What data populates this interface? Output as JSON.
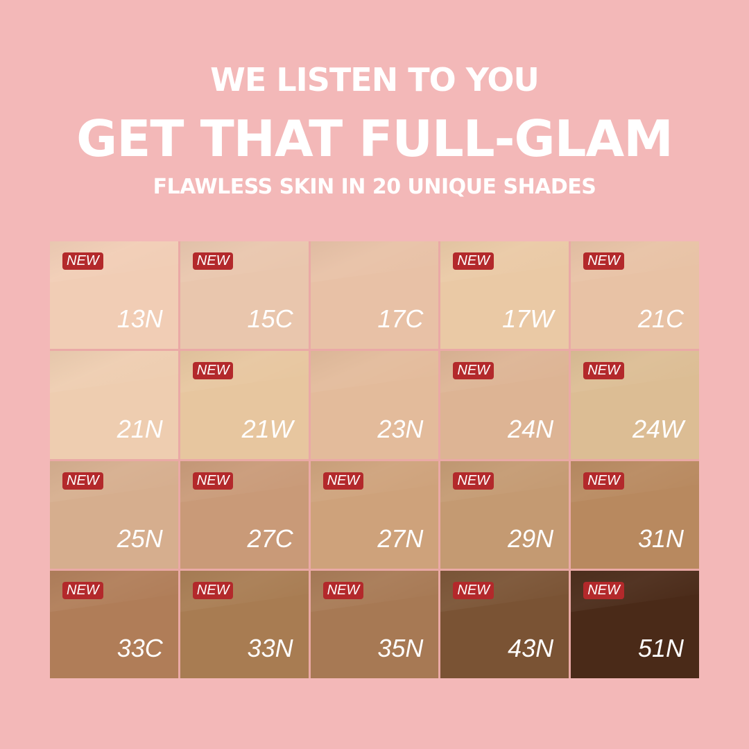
{
  "header": {
    "line1": "WE LISTEN TO YOU",
    "line2": "GET THAT FULL-GLAM",
    "line3": "FLAWLESS SKIN IN 20 UNIQUE SHADES"
  },
  "badge_label": "NEW",
  "colors": {
    "background": "#f3b8b8",
    "badge": "#b3292b"
  },
  "shades": [
    {
      "name": "13N",
      "new": true,
      "color": "#f1cdb5"
    },
    {
      "name": "15C",
      "new": true,
      "color": "#e9c6ad"
    },
    {
      "name": "17C",
      "new": false,
      "color": "#e8c1a6"
    },
    {
      "name": "17W",
      "new": true,
      "color": "#eac9a5"
    },
    {
      "name": "21C",
      "new": true,
      "color": "#e8c2a5"
    },
    {
      "name": "21N",
      "new": false,
      "color": "#eecdb0"
    },
    {
      "name": "21W",
      "new": true,
      "color": "#e7c69f"
    },
    {
      "name": "23N",
      "new": false,
      "color": "#e3bb9b"
    },
    {
      "name": "24N",
      "new": true,
      "color": "#ddb494"
    },
    {
      "name": "24W",
      "new": true,
      "color": "#dcbd94"
    },
    {
      "name": "25N",
      "new": true,
      "color": "#d6ae8e"
    },
    {
      "name": "27C",
      "new": true,
      "color": "#c99a78"
    },
    {
      "name": "27N",
      "new": true,
      "color": "#cea27b"
    },
    {
      "name": "29N",
      "new": true,
      "color": "#c49a72"
    },
    {
      "name": "31N",
      "new": true,
      "color": "#b8895f"
    },
    {
      "name": "33C",
      "new": true,
      "color": "#b07d58"
    },
    {
      "name": "33N",
      "new": true,
      "color": "#a87c52"
    },
    {
      "name": "35N",
      "new": true,
      "color": "#a77954"
    },
    {
      "name": "43N",
      "new": true,
      "color": "#7a5334"
    },
    {
      "name": "51N",
      "new": true,
      "color": "#4a2a18"
    }
  ]
}
